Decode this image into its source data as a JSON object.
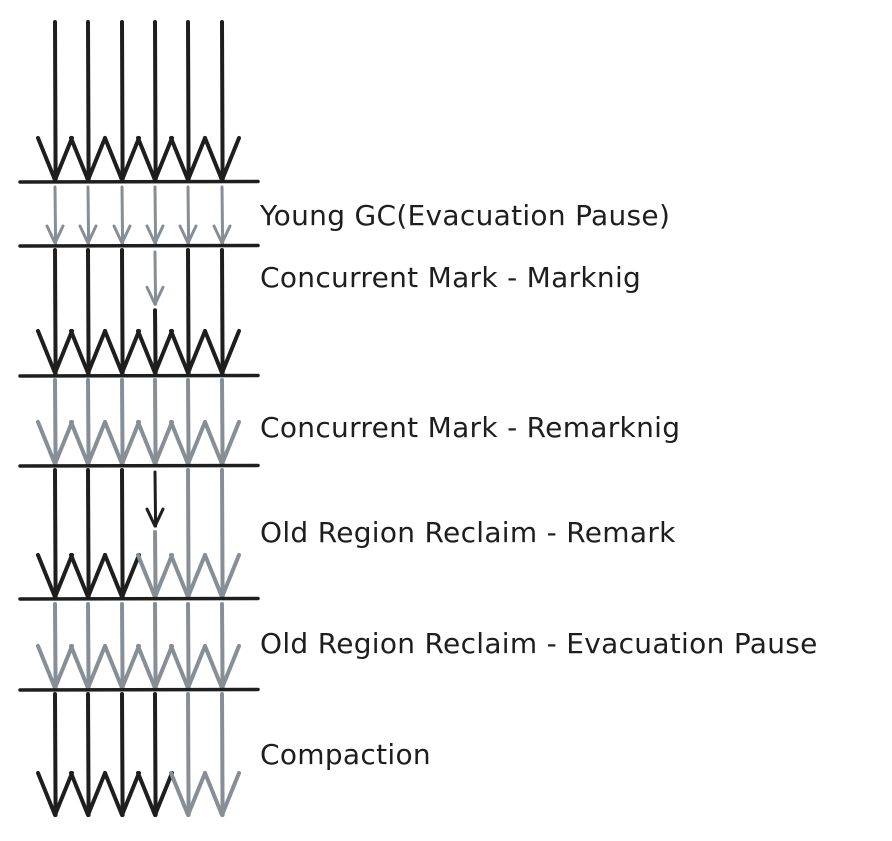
{
  "colors": {
    "ink": "#1e1e1e",
    "faded": "#868e96",
    "background": "#ffffff"
  },
  "phases": [
    {
      "label": "",
      "states": [
        "dark",
        "dark",
        "dark",
        "dark",
        "dark",
        "dark"
      ]
    },
    {
      "label": "Young GC(Evacuation Pause)",
      "states": [
        "faded",
        "faded",
        "faded",
        "faded",
        "faded",
        "faded"
      ]
    },
    {
      "label": "Concurrent Mark - Marknig",
      "states": [
        "dark",
        "dark",
        "dark",
        "faded-then-dark",
        "dark",
        "dark"
      ]
    },
    {
      "label": "Concurrent Mark - Remarknig",
      "states": [
        "faded",
        "faded",
        "faded",
        "faded",
        "faded",
        "faded"
      ]
    },
    {
      "label": "Old Region Reclaim - Remark",
      "states": [
        "dark",
        "dark",
        "dark",
        "dark-then-faded",
        "faded",
        "faded"
      ]
    },
    {
      "label": "Old Region Reclaim - Evacuation Pause",
      "states": [
        "faded",
        "faded",
        "faded",
        "faded",
        "faded",
        "faded"
      ]
    },
    {
      "label": "Compaction",
      "states": [
        "dark",
        "dark",
        "dark",
        "dark",
        "faded",
        "faded"
      ]
    }
  ]
}
